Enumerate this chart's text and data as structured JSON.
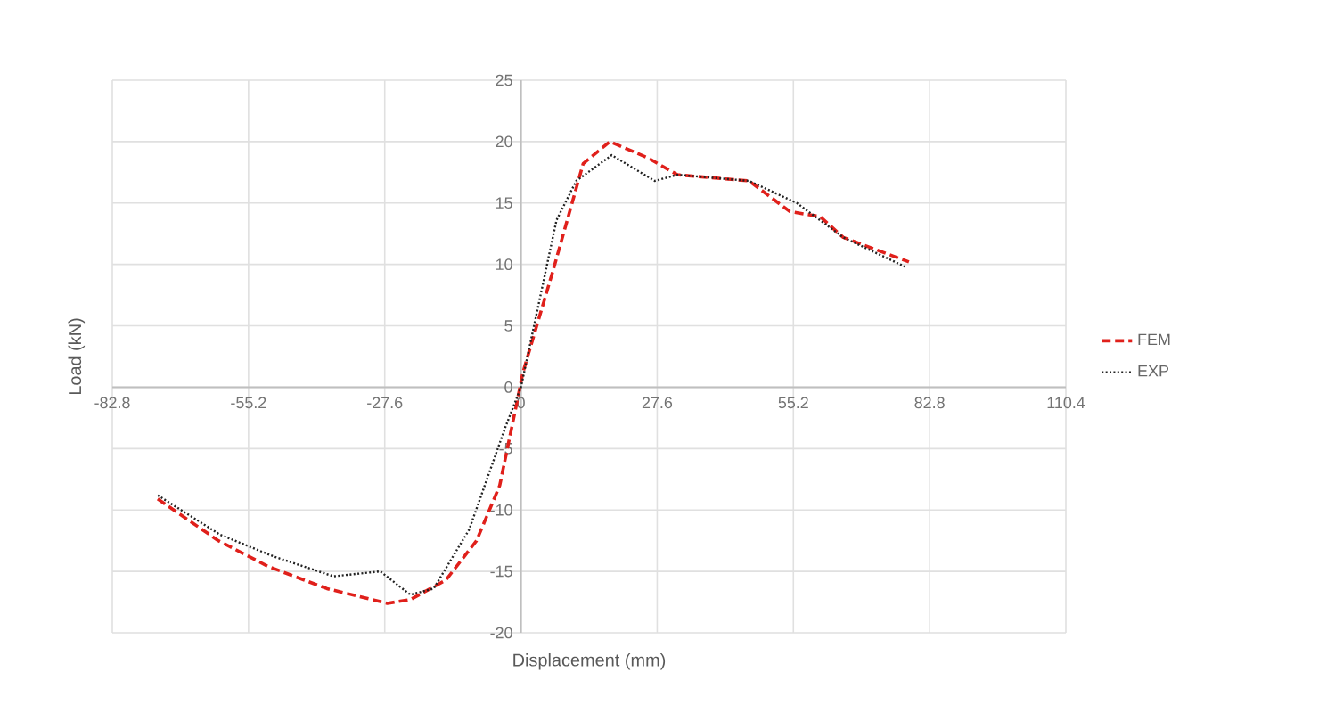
{
  "chart_data": {
    "type": "line",
    "xlabel": "Displacement (mm)",
    "ylabel": "Load (kN)",
    "xlim": [
      -82.8,
      110.4
    ],
    "xticks": [
      -82.8,
      -55.2,
      -27.6,
      0,
      27.6,
      55.2,
      82.8,
      110.4
    ],
    "ylim": [
      -20,
      25
    ],
    "yticks": [
      -20,
      -15,
      -10,
      -5,
      0,
      5,
      10,
      15,
      20,
      25
    ],
    "grid": true,
    "legend": "right",
    "marker": "none",
    "series": [
      {
        "name": "FEM",
        "color": "#e0201b",
        "line_style": "dashed",
        "x": [
          -73.6,
          -61.3,
          -51.2,
          -39.3,
          -27.1,
          -22.4,
          -15.2,
          -9.0,
          -4.3,
          -0.7,
          0.4,
          6.5,
          12.6,
          18.0,
          25.6,
          31.7,
          46.2,
          54.5,
          60.6,
          65.3,
          78.6
        ],
        "values": [
          -9.1,
          -12.5,
          -14.6,
          -16.4,
          -17.6,
          -17.3,
          -15.7,
          -12.5,
          -8.0,
          -1.0,
          1.2,
          9.5,
          18.2,
          20.0,
          18.7,
          17.3,
          16.8,
          14.3,
          13.9,
          12.2,
          10.2
        ]
      },
      {
        "name": "EXP",
        "color": "#222222",
        "line_style": "dotted",
        "x": [
          -73.6,
          -61.0,
          -50.0,
          -38.0,
          -28.5,
          -22.4,
          -17.7,
          -10.5,
          -3.2,
          0.0,
          7.2,
          11.2,
          18.4,
          27.1,
          31.7,
          46.2,
          55.9,
          65.3,
          77.9
        ],
        "values": [
          -8.8,
          -12.0,
          -13.8,
          -15.4,
          -15.0,
          -16.9,
          -16.4,
          -11.6,
          -3.3,
          0.0,
          13.6,
          16.8,
          18.9,
          16.8,
          17.3,
          16.8,
          15.0,
          12.2,
          9.8
        ]
      }
    ]
  }
}
